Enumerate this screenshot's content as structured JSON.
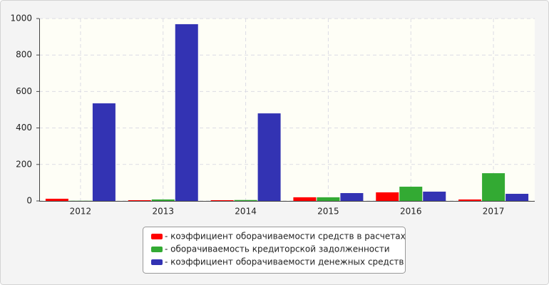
{
  "chart_data": {
    "type": "bar",
    "categories": [
      "2012",
      "2013",
      "2014",
      "2015",
      "2016",
      "2017"
    ],
    "series": [
      {
        "name": "- коэффициент оборачиваемости средств в расчетах",
        "color": "#ff0000",
        "values": [
          12,
          4,
          4,
          20,
          47,
          8
        ]
      },
      {
        "name": "- оборачиваемость кредиторской задолженности",
        "color": "#33aa33",
        "values": [
          1,
          8,
          5,
          20,
          78,
          152
        ]
      },
      {
        "name": "- коэффициент оборачиваемости денежных средств",
        "color": "#3333b3",
        "values": [
          535,
          969,
          480,
          43,
          51,
          39
        ]
      }
    ],
    "ylim": [
      0,
      1000
    ],
    "yticks": [
      0,
      200,
      400,
      600,
      800,
      1000
    ],
    "grid": true
  }
}
